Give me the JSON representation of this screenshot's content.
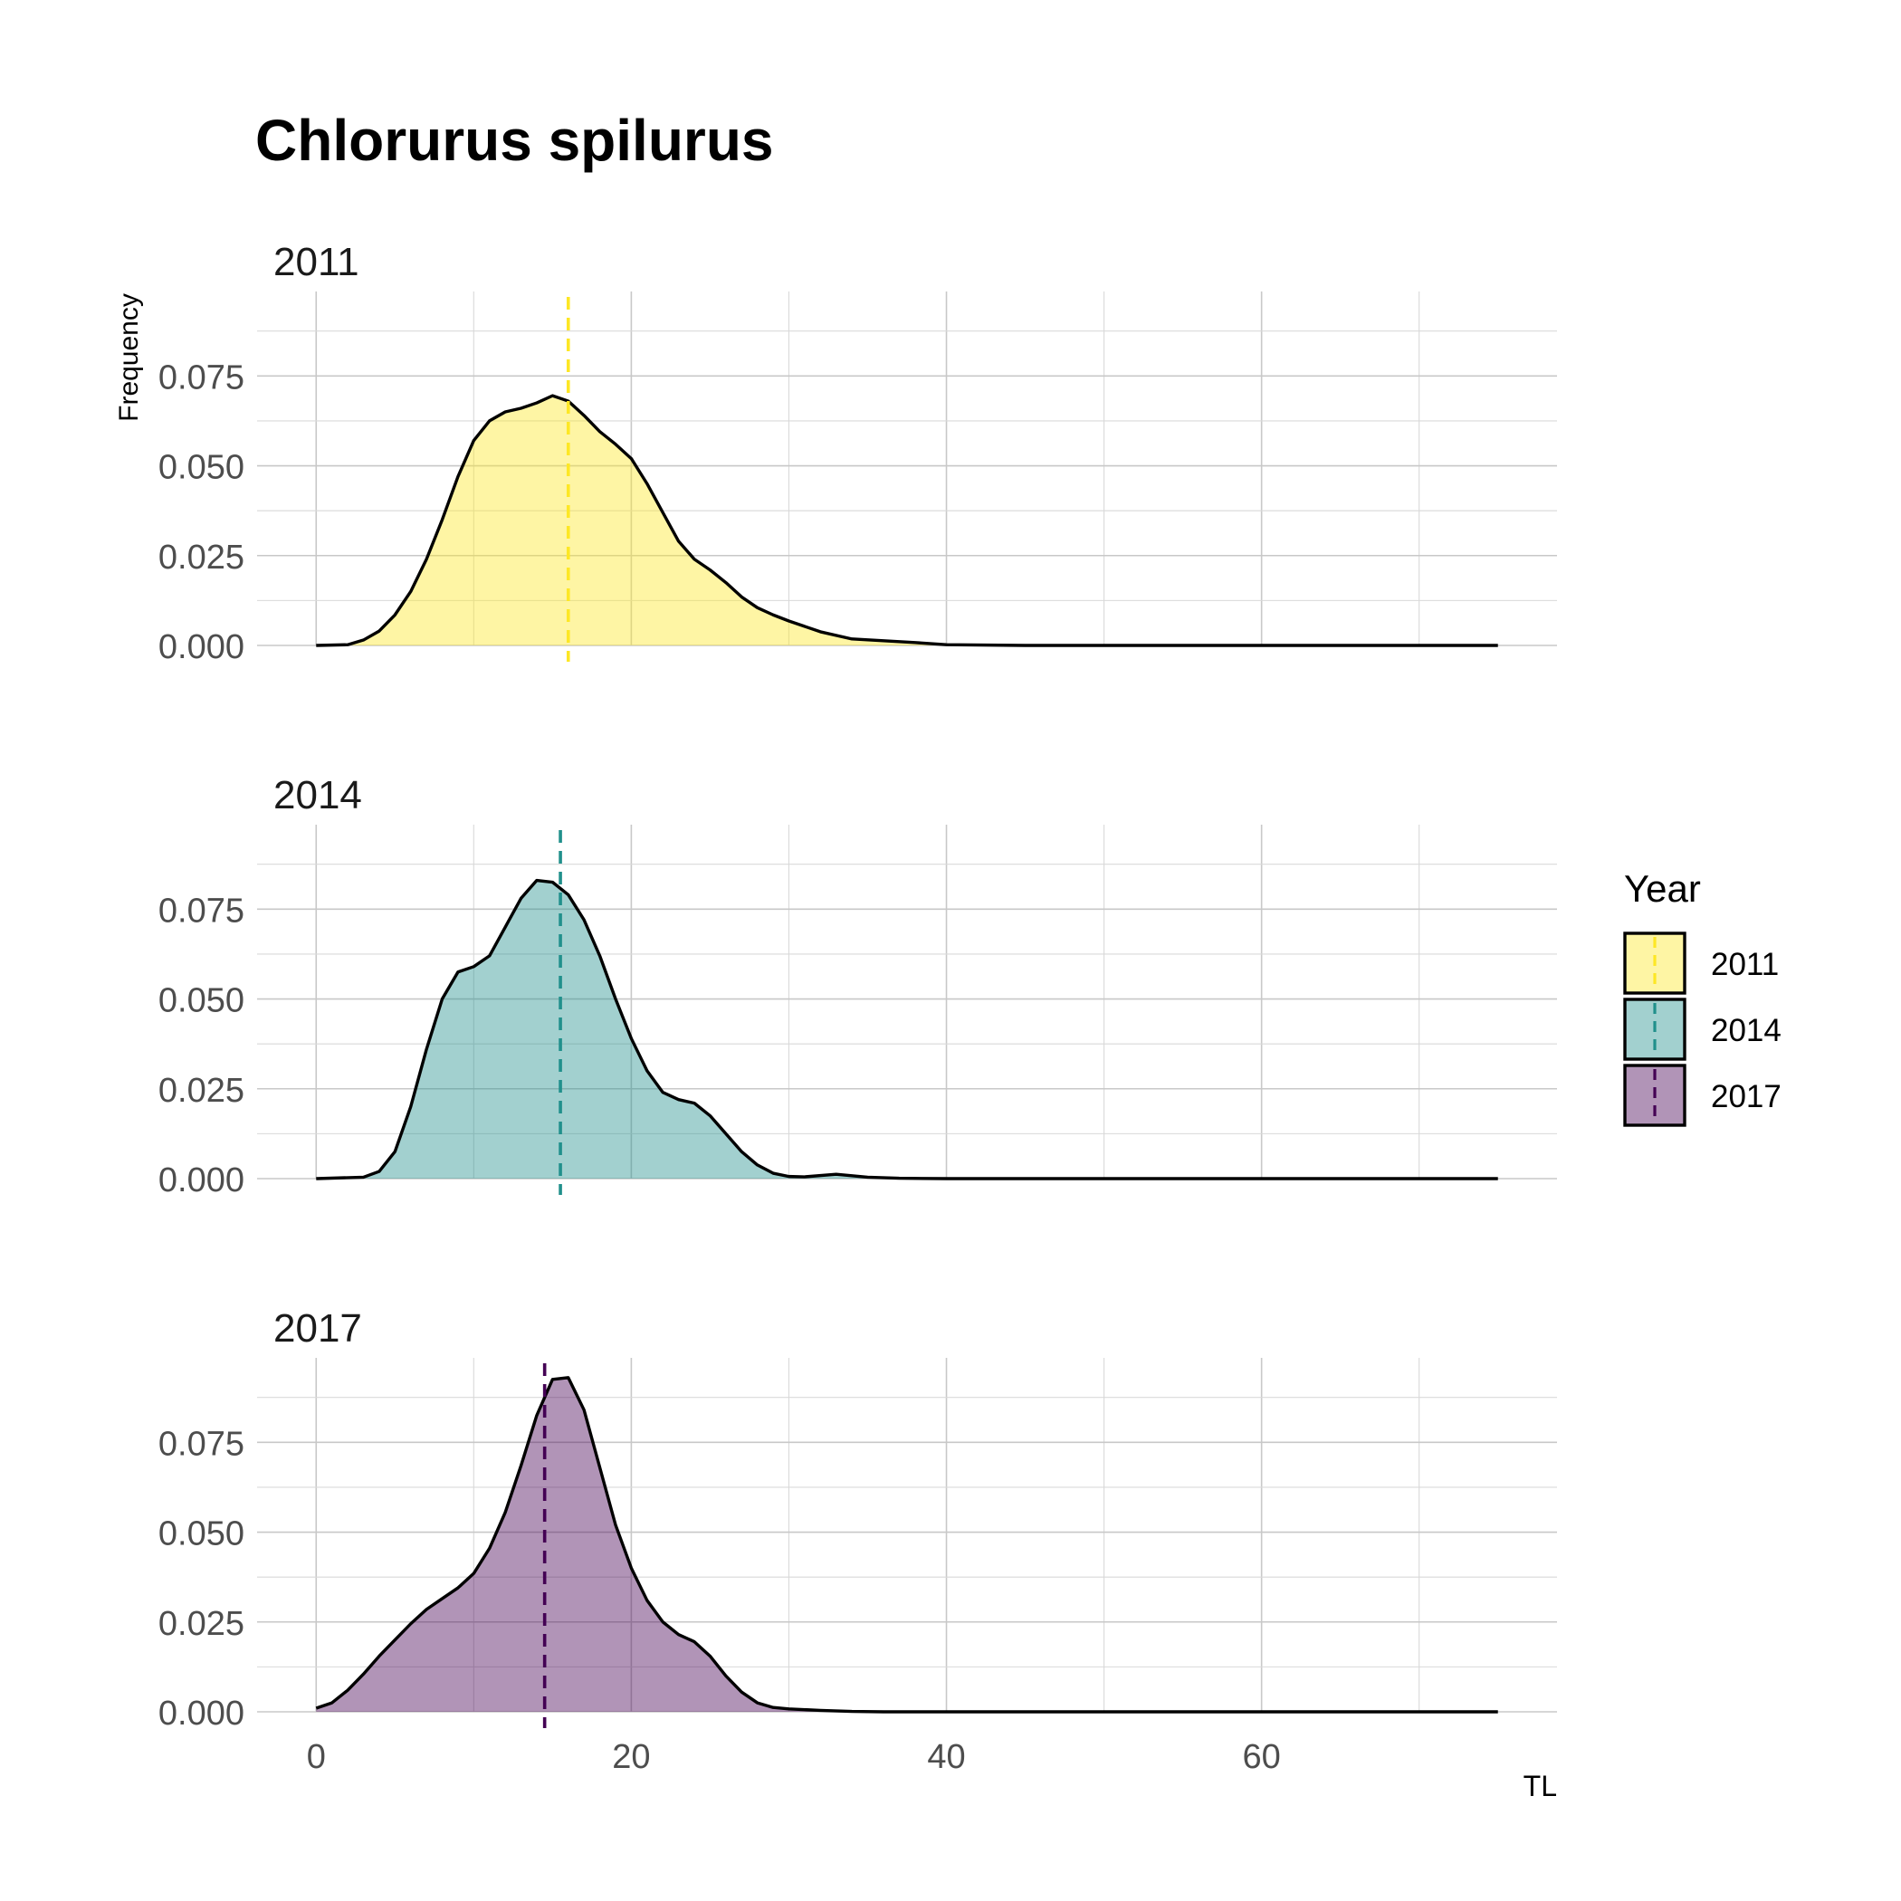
{
  "chart_data": {
    "type": "area",
    "title": "Chlorurus spilurus",
    "xlabel": "TL",
    "ylabel": "Frequency",
    "xlim": [
      -3.75,
      78.75
    ],
    "ylim": [
      0,
      0.0985
    ],
    "x_ticks": [
      0,
      20,
      40,
      60
    ],
    "x_tick_labels": [
      "0",
      "20",
      "40",
      "60"
    ],
    "y_ticks": [
      0.0,
      0.025,
      0.05,
      0.075
    ],
    "y_tick_labels": [
      "0.000",
      "0.025",
      "0.050",
      "0.075"
    ],
    "grid": true,
    "legend": {
      "title": "Year",
      "placement": "right"
    },
    "panels": [
      {
        "label": "2011",
        "color": "#FDE725",
        "mean": 16.0,
        "x": [
          0,
          2,
          3,
          4,
          5,
          6,
          7,
          8,
          9,
          10,
          11,
          12,
          13,
          14,
          15,
          16,
          17,
          18,
          19,
          20,
          21,
          22,
          23,
          24,
          25,
          26,
          27,
          28,
          29,
          30,
          32,
          34,
          36,
          38,
          40,
          45,
          50,
          55,
          60,
          65,
          70,
          75
        ],
        "y": [
          0.0,
          0.0002,
          0.0015,
          0.004,
          0.0085,
          0.015,
          0.024,
          0.035,
          0.047,
          0.057,
          0.0625,
          0.065,
          0.066,
          0.0675,
          0.0695,
          0.068,
          0.064,
          0.0595,
          0.056,
          0.052,
          0.045,
          0.037,
          0.029,
          0.024,
          0.021,
          0.0175,
          0.0135,
          0.0105,
          0.0085,
          0.0068,
          0.0038,
          0.0018,
          0.0013,
          0.0008,
          0.0002,
          0.0,
          0.0,
          0.0,
          0.0,
          0.0,
          0.0,
          0.0
        ]
      },
      {
        "label": "2014",
        "color": "#21908C",
        "mean": 15.5,
        "x": [
          0,
          3,
          4,
          5,
          6,
          7,
          8,
          9,
          10,
          11,
          12,
          13,
          14,
          15,
          16,
          17,
          18,
          19,
          20,
          21,
          22,
          23,
          24,
          25,
          26,
          27,
          28,
          29,
          30,
          31,
          33,
          35,
          37,
          40,
          45,
          50,
          55,
          60,
          65,
          70,
          75
        ],
        "y": [
          0.0,
          0.0004,
          0.002,
          0.0075,
          0.02,
          0.036,
          0.05,
          0.0575,
          0.059,
          0.062,
          0.07,
          0.078,
          0.083,
          0.0825,
          0.079,
          0.072,
          0.062,
          0.05,
          0.039,
          0.03,
          0.024,
          0.022,
          0.021,
          0.0175,
          0.0125,
          0.0075,
          0.0038,
          0.0015,
          0.0006,
          0.0005,
          0.0012,
          0.0004,
          0.0001,
          0.0,
          0.0,
          0.0,
          0.0,
          0.0,
          0.0,
          0.0,
          0.0
        ]
      },
      {
        "label": "2017",
        "color": "#440154",
        "mean": 14.5,
        "x": [
          0,
          1,
          2,
          3,
          4,
          5,
          6,
          7,
          8,
          9,
          10,
          11,
          12,
          13,
          14,
          15,
          16,
          17,
          18,
          19,
          20,
          21,
          22,
          23,
          24,
          25,
          26,
          27,
          28,
          29,
          30,
          32,
          34,
          36,
          40,
          45,
          50,
          55,
          60,
          65,
          70,
          75
        ],
        "y": [
          0.001,
          0.0025,
          0.006,
          0.0105,
          0.0155,
          0.02,
          0.0245,
          0.0285,
          0.0315,
          0.0345,
          0.0385,
          0.0455,
          0.0555,
          0.0685,
          0.0825,
          0.0925,
          0.093,
          0.084,
          0.068,
          0.052,
          0.04,
          0.031,
          0.025,
          0.0215,
          0.0195,
          0.0155,
          0.01,
          0.0055,
          0.0025,
          0.0012,
          0.0008,
          0.0004,
          0.0001,
          0.0,
          0.0,
          0.0,
          0.0,
          0.0,
          0.0,
          0.0,
          0.0,
          0.0
        ]
      }
    ]
  }
}
